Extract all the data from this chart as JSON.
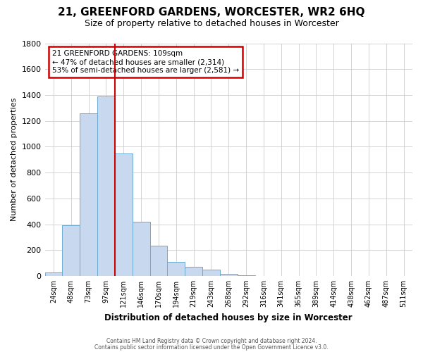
{
  "title": "21, GREENFORD GARDENS, WORCESTER, WR2 6HQ",
  "subtitle": "Size of property relative to detached houses in Worcester",
  "xlabel": "Distribution of detached houses by size in Worcester",
  "ylabel": "Number of detached properties",
  "bar_labels": [
    "24sqm",
    "48sqm",
    "73sqm",
    "97sqm",
    "121sqm",
    "146sqm",
    "170sqm",
    "194sqm",
    "219sqm",
    "243sqm",
    "268sqm",
    "292sqm",
    "316sqm",
    "341sqm",
    "365sqm",
    "389sqm",
    "414sqm",
    "438sqm",
    "462sqm",
    "487sqm",
    "511sqm"
  ],
  "bar_values": [
    25,
    390,
    1260,
    1390,
    950,
    420,
    235,
    110,
    70,
    50,
    15,
    5,
    0,
    0,
    0,
    0,
    0,
    0,
    0,
    0,
    0
  ],
  "bar_color": "#c8d9ef",
  "bar_edge_color": "#6aabd2",
  "ylim": [
    0,
    1800
  ],
  "yticks": [
    0,
    200,
    400,
    600,
    800,
    1000,
    1200,
    1400,
    1600,
    1800
  ],
  "annotation_title": "21 GREENFORD GARDENS: 109sqm",
  "annotation_line1": "← 47% of detached houses are smaller (2,314)",
  "annotation_line2": "53% of semi-detached houses are larger (2,581) →",
  "annotation_box_color": "#ffffff",
  "annotation_box_edge": "#cc0000",
  "vline_color": "#cc0000",
  "vline_x_index": 4,
  "footer1": "Contains HM Land Registry data © Crown copyright and database right 2024.",
  "footer2": "Contains public sector information licensed under the Open Government Licence v3.0.",
  "background_color": "#ffffff",
  "grid_color": "#cccccc"
}
